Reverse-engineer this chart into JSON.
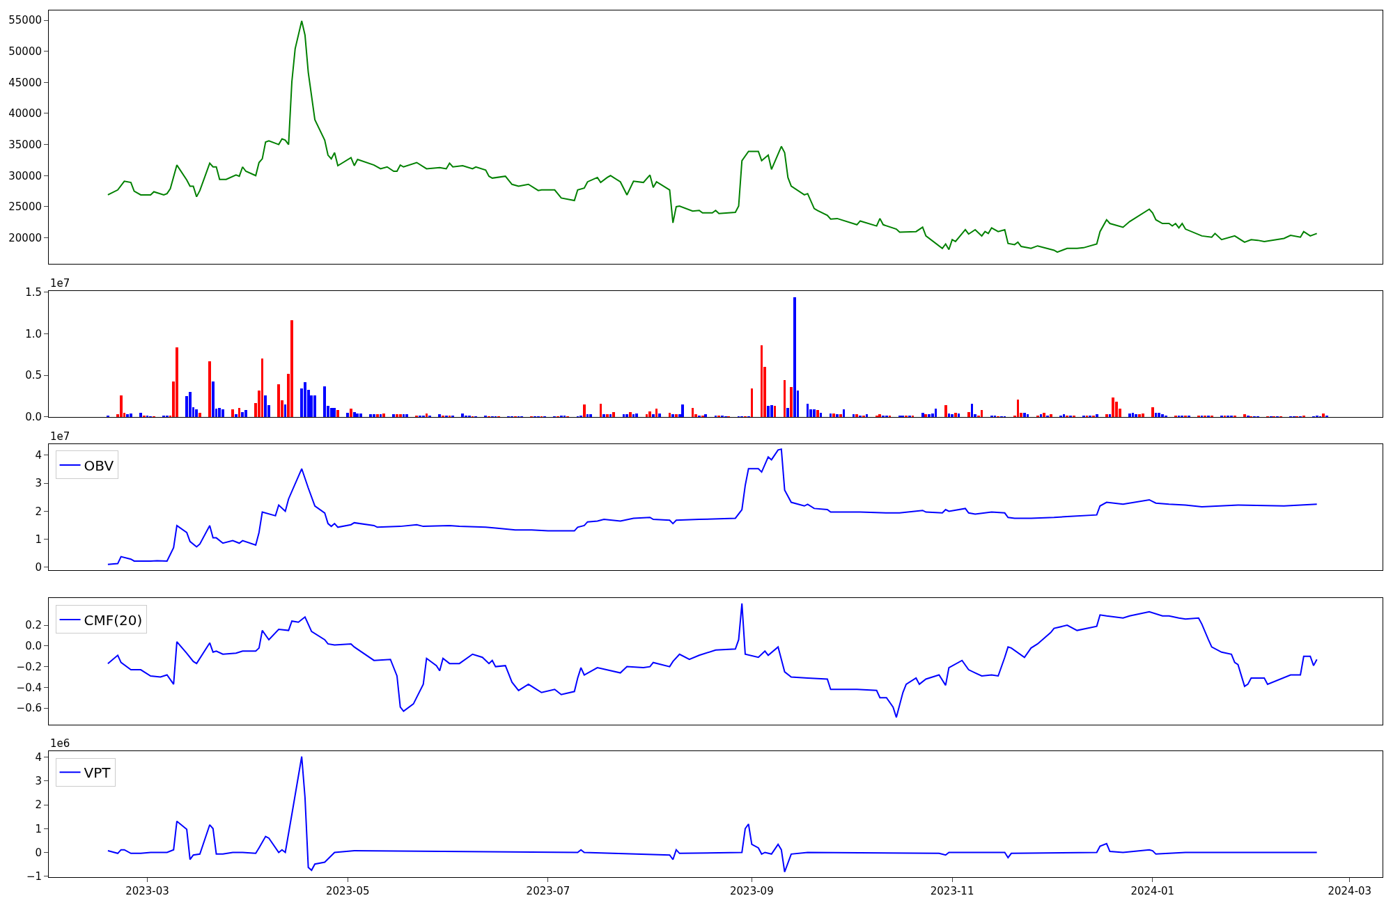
{
  "chart_data": [
    {
      "type": "line",
      "xlim": [
        "2023-01-30",
        "2024-03-11"
      ],
      "ylim": [
        15860,
        56570
      ],
      "yticks": [
        20000,
        25000,
        30000,
        35000,
        40000,
        45000,
        50000,
        55000
      ],
      "tick_labels": "y",
      "x": [
        "2023-02-17",
        "2023-02-20",
        "2023-02-22",
        "2023-02-24",
        "2023-02-25",
        "2023-02-27",
        "2023-03-02",
        "2023-03-03",
        "2023-03-06",
        "2023-03-07",
        "2023-03-08",
        "2023-03-10",
        "2023-03-13",
        "2023-03-14",
        "2023-03-15",
        "2023-03-16",
        "2023-03-17",
        "2023-03-20",
        "2023-03-21",
        "2023-03-22",
        "2023-03-23",
        "2023-03-25",
        "2023-03-28",
        "2023-03-29",
        "2023-03-30",
        "2023-03-31",
        "2023-04-03",
        "2023-04-04",
        "2023-04-05",
        "2023-04-06",
        "2023-04-07",
        "2023-04-10",
        "2023-04-11",
        "2023-04-12",
        "2023-04-13",
        "2023-04-14",
        "2023-04-15",
        "2023-04-17",
        "2023-04-18",
        "2023-04-19",
        "2023-04-21",
        "2023-04-24",
        "2023-04-25",
        "2023-04-26",
        "2023-04-27",
        "2023-04-28",
        "2023-05-02",
        "2023-05-03",
        "2023-05-04",
        "2023-05-09",
        "2023-05-11",
        "2023-05-13",
        "2023-05-15",
        "2023-05-16",
        "2023-05-17",
        "2023-05-18",
        "2023-05-22",
        "2023-05-25",
        "2023-05-29",
        "2023-05-31",
        "2023-06-01",
        "2023-06-02",
        "2023-06-05",
        "2023-06-08",
        "2023-06-09",
        "2023-06-12",
        "2023-06-13",
        "2023-06-14",
        "2023-06-18",
        "2023-06-20",
        "2023-06-22",
        "2023-06-25",
        "2023-06-28",
        "2023-06-29",
        "2023-07-03",
        "2023-07-05",
        "2023-07-09",
        "2023-07-10",
        "2023-07-12",
        "2023-07-13",
        "2023-07-16",
        "2023-07-17",
        "2023-07-19",
        "2023-07-20",
        "2023-07-23",
        "2023-07-25",
        "2023-07-27",
        "2023-07-30",
        "2023-08-01",
        "2023-08-02",
        "2023-08-03",
        "2023-08-07",
        "2023-08-08",
        "2023-08-09",
        "2023-08-10",
        "2023-08-14",
        "2023-08-16",
        "2023-08-17",
        "2023-08-20",
        "2023-08-21",
        "2023-08-22",
        "2023-08-27",
        "2023-08-28",
        "2023-08-29",
        "2023-08-31",
        "2023-09-03",
        "2023-09-04",
        "2023-09-06",
        "2023-09-07",
        "2023-09-10",
        "2023-09-11",
        "2023-09-12",
        "2023-09-13",
        "2023-09-17",
        "2023-09-18",
        "2023-09-20",
        "2023-09-21",
        "2023-09-24",
        "2023-09-25",
        "2023-09-27",
        "2023-10-03",
        "2023-10-04",
        "2023-10-09",
        "2023-10-10",
        "2023-10-11",
        "2023-10-15",
        "2023-10-16",
        "2023-10-21",
        "2023-10-23",
        "2023-10-24",
        "2023-10-29",
        "2023-10-30",
        "2023-10-31",
        "2023-11-01",
        "2023-11-02",
        "2023-11-05",
        "2023-11-06",
        "2023-11-08",
        "2023-11-10",
        "2023-11-11",
        "2023-11-12",
        "2023-11-13",
        "2023-11-15",
        "2023-11-17",
        "2023-11-18",
        "2023-11-20",
        "2023-11-21",
        "2023-11-22",
        "2023-11-25",
        "2023-11-27",
        "2023-12-02",
        "2023-12-03",
        "2023-12-06",
        "2023-12-09",
        "2023-12-11",
        "2023-12-15",
        "2023-12-16",
        "2023-12-18",
        "2023-12-19",
        "2023-12-23",
        "2023-12-25",
        "2023-12-31",
        "2024-01-01",
        "2024-01-02",
        "2024-01-04",
        "2024-01-06",
        "2024-01-07",
        "2024-01-08",
        "2024-01-09",
        "2024-01-10",
        "2024-01-11",
        "2024-01-16",
        "2024-01-19",
        "2024-01-20",
        "2024-01-22",
        "2024-01-26",
        "2024-01-29",
        "2024-01-31",
        "2024-02-02",
        "2024-02-04",
        "2024-02-10",
        "2024-02-12",
        "2024-02-15",
        "2024-02-16",
        "2024-02-18",
        "2024-02-20"
      ],
      "series": [
        {
          "color": "#008000",
          "values": [
            26900,
            27700,
            29100,
            28900,
            27500,
            26900,
            26900,
            27400,
            26900,
            27100,
            27900,
            31700,
            29300,
            28300,
            28300,
            26600,
            27600,
            32000,
            31400,
            31400,
            29400,
            29400,
            30100,
            29900,
            31400,
            30700,
            30000,
            32100,
            32700,
            35400,
            35600,
            35000,
            35900,
            35700,
            35000,
            45100,
            50400,
            54900,
            52600,
            46600,
            39000,
            35700,
            33300,
            32700,
            33700,
            31600,
            32900,
            31600,
            32600,
            31700,
            31100,
            31400,
            30700,
            30700,
            31700,
            31400,
            32100,
            31100,
            31300,
            31100,
            32000,
            31400,
            31600,
            31100,
            31400,
            30900,
            29900,
            29600,
            29900,
            28600,
            28300,
            28600,
            27600,
            27700,
            27700,
            26400,
            26000,
            27700,
            28000,
            29000,
            29700,
            28900,
            29700,
            30000,
            29000,
            26900,
            29100,
            28900,
            30100,
            28100,
            29000,
            27700,
            22400,
            25000,
            25100,
            24300,
            24400,
            24000,
            24000,
            24400,
            23900,
            24100,
            25100,
            32400,
            33900,
            33900,
            32400,
            33300,
            31000,
            34700,
            33700,
            29700,
            28300,
            26900,
            27100,
            24700,
            24400,
            23600,
            23000,
            23100,
            22100,
            22700,
            21900,
            23100,
            22100,
            21400,
            20900,
            21000,
            21700,
            20300,
            18300,
            19000,
            18100,
            19700,
            19400,
            21300,
            20600,
            21300,
            20300,
            21000,
            20700,
            21600,
            21000,
            21300,
            19100,
            18900,
            19300,
            18600,
            18300,
            18700,
            18000,
            17700,
            18300,
            18300,
            18400,
            19000,
            21000,
            22900,
            22300,
            21700,
            22600,
            24600,
            24000,
            22900,
            22300,
            22300,
            21900,
            22300,
            21600,
            22300,
            21400,
            20300,
            20100,
            20700,
            19700,
            20300,
            19300,
            19700,
            19600,
            19400,
            19900,
            20400,
            20100,
            21000,
            20300,
            20700
          ]
        }
      ]
    },
    {
      "type": "bar",
      "xlim": [
        "2023-01-30",
        "2024-03-11"
      ],
      "ylim": [
        0,
        1.512
      ],
      "yticks": [
        {
          "value": 0,
          "label": "0.0"
        },
        0.5,
        {
          "value": 1,
          "label": "1.0"
        },
        1.5
      ],
      "tick_labels": "y",
      "annotations": [
        "1e7"
      ],
      "x": [
        "2023-02-17",
        "2023-02-20",
        "2023-02-21",
        "2023-02-22",
        "2023-02-23",
        "2023-02-24",
        "2023-02-27",
        "2023-02-28",
        "2023-03-01",
        "2023-03-02",
        "2023-03-03",
        "2023-03-06",
        "2023-03-07",
        "2023-03-08",
        "2023-03-09",
        "2023-03-10",
        "2023-03-13",
        "2023-03-14",
        "2023-03-15",
        "2023-03-16",
        "2023-03-17",
        "2023-03-20",
        "2023-03-21",
        "2023-03-22",
        "2023-03-23",
        "2023-03-24",
        "2023-03-27",
        "2023-03-28",
        "2023-03-29",
        "2023-03-30",
        "2023-03-31",
        "2023-04-03",
        "2023-04-04",
        "2023-04-05",
        "2023-04-06",
        "2023-04-07",
        "2023-04-10",
        "2023-04-11",
        "2023-04-12",
        "2023-04-13",
        "2023-04-14",
        "2023-04-17",
        "2023-04-18",
        "2023-04-19",
        "2023-04-20",
        "2023-04-21",
        "2023-04-24",
        "2023-04-25",
        "2023-04-26",
        "2023-04-27",
        "2023-04-28",
        "2023-05-01",
        "2023-05-02",
        "2023-05-03",
        "2023-05-04",
        "2023-05-05",
        "2023-05-08",
        "2023-05-09",
        "2023-05-10",
        "2023-05-11",
        "2023-05-12",
        "2023-05-15",
        "2023-05-16",
        "2023-05-17",
        "2023-05-18",
        "2023-05-19",
        "2023-05-22",
        "2023-05-23",
        "2023-05-24",
        "2023-05-25",
        "2023-05-26",
        "2023-05-29",
        "2023-05-30",
        "2023-05-31",
        "2023-06-01",
        "2023-06-02",
        "2023-06-05",
        "2023-06-06",
        "2023-06-07",
        "2023-06-08",
        "2023-06-09",
        "2023-06-12",
        "2023-06-13",
        "2023-06-14",
        "2023-06-15",
        "2023-06-16",
        "2023-06-19",
        "2023-06-20",
        "2023-06-21",
        "2023-06-22",
        "2023-06-23",
        "2023-06-26",
        "2023-06-27",
        "2023-06-28",
        "2023-06-29",
        "2023-06-30",
        "2023-07-03",
        "2023-07-04",
        "2023-07-05",
        "2023-07-06",
        "2023-07-07",
        "2023-07-10",
        "2023-07-11",
        "2023-07-12",
        "2023-07-13",
        "2023-07-14",
        "2023-07-17",
        "2023-07-18",
        "2023-07-19",
        "2023-07-20",
        "2023-07-21",
        "2023-07-24",
        "2023-07-25",
        "2023-07-26",
        "2023-07-27",
        "2023-07-28",
        "2023-07-31",
        "2023-08-01",
        "2023-08-02",
        "2023-08-03",
        "2023-08-04",
        "2023-08-07",
        "2023-08-08",
        "2023-08-09",
        "2023-08-10",
        "2023-08-11",
        "2023-08-14",
        "2023-08-15",
        "2023-08-16",
        "2023-08-17",
        "2023-08-18",
        "2023-08-21",
        "2023-08-22",
        "2023-08-23",
        "2023-08-24",
        "2023-08-25",
        "2023-08-28",
        "2023-08-29",
        "2023-08-30",
        "2023-08-31",
        "2023-09-01",
        "2023-09-04",
        "2023-09-05",
        "2023-09-06",
        "2023-09-07",
        "2023-09-08",
        "2023-09-11",
        "2023-09-12",
        "2023-09-13",
        "2023-09-14",
        "2023-09-15",
        "2023-09-18",
        "2023-09-19",
        "2023-09-20",
        "2023-09-21",
        "2023-09-22",
        "2023-09-25",
        "2023-09-26",
        "2023-09-27",
        "2023-09-28",
        "2023-09-29",
        "2023-10-02",
        "2023-10-03",
        "2023-10-04",
        "2023-10-05",
        "2023-10-06",
        "2023-10-09",
        "2023-10-10",
        "2023-10-11",
        "2023-10-12",
        "2023-10-13",
        "2023-10-16",
        "2023-10-17",
        "2023-10-18",
        "2023-10-19",
        "2023-10-20",
        "2023-10-23",
        "2023-10-24",
        "2023-10-25",
        "2023-10-26",
        "2023-10-27",
        "2023-10-30",
        "2023-10-31",
        "2023-11-01",
        "2023-11-02",
        "2023-11-03",
        "2023-11-06",
        "2023-11-07",
        "2023-11-08",
        "2023-11-09",
        "2023-11-10",
        "2023-11-13",
        "2023-11-14",
        "2023-11-15",
        "2023-11-16",
        "2023-11-17",
        "2023-11-20",
        "2023-11-21",
        "2023-11-22",
        "2023-11-23",
        "2023-11-24",
        "2023-11-27",
        "2023-11-28",
        "2023-11-29",
        "2023-11-30",
        "2023-12-01",
        "2023-12-04",
        "2023-12-05",
        "2023-12-06",
        "2023-12-07",
        "2023-12-08",
        "2023-12-11",
        "2023-12-12",
        "2023-12-13",
        "2023-12-14",
        "2023-12-15",
        "2023-12-18",
        "2023-12-19",
        "2023-12-20",
        "2023-12-21",
        "2023-12-22",
        "2023-12-25",
        "2023-12-26",
        "2023-12-27",
        "2023-12-28",
        "2023-12-29",
        "2024-01-01",
        "2024-01-02",
        "2024-01-03",
        "2024-01-04",
        "2024-01-05",
        "2024-01-08",
        "2024-01-09",
        "2024-01-10",
        "2024-01-11",
        "2024-01-12",
        "2024-01-15",
        "2024-01-16",
        "2024-01-17",
        "2024-01-18",
        "2024-01-19",
        "2024-01-22",
        "2024-01-23",
        "2024-01-24",
        "2024-01-25",
        "2024-01-26",
        "2024-01-29",
        "2024-01-30",
        "2024-01-31",
        "2024-02-01",
        "2024-02-02",
        "2024-02-05",
        "2024-02-06",
        "2024-02-07",
        "2024-02-08",
        "2024-02-09",
        "2024-02-12",
        "2024-02-13",
        "2024-02-14",
        "2024-02-15",
        "2024-02-16",
        "2024-02-19",
        "2024-02-20",
        "2024-02-21",
        "2024-02-22",
        "2024-02-23"
      ],
      "values": [
        0.02,
        0.03,
        0.26,
        0.05,
        0.03,
        0.04,
        0.05,
        0.02,
        0.02,
        0.01,
        0.01,
        0.02,
        0.02,
        0.02,
        0.43,
        0.84,
        0.25,
        0.3,
        0.12,
        0.09,
        0.05,
        0.67,
        0.43,
        0.1,
        0.11,
        0.09,
        0.09,
        0.03,
        0.11,
        0.06,
        0.08,
        0.17,
        0.32,
        0.7,
        0.26,
        0.14,
        0.39,
        0.2,
        0.15,
        0.52,
        1.16,
        0.34,
        0.42,
        0.33,
        0.26,
        0.26,
        0.37,
        0.13,
        0.11,
        0.11,
        0.08,
        0.05,
        0.1,
        0.06,
        0.04,
        0.04,
        0.03,
        0.03,
        0.03,
        0.03,
        0.04,
        0.03,
        0.03,
        0.03,
        0.03,
        0.03,
        0.02,
        0.02,
        0.02,
        0.04,
        0.02,
        0.03,
        0.02,
        0.02,
        0.02,
        0.02,
        0.04,
        0.02,
        0.02,
        0.01,
        0.01,
        0.02,
        0.01,
        0.01,
        0.01,
        0.01,
        0.01,
        0.01,
        0.01,
        0.01,
        0.01,
        0.01,
        0.01,
        0.01,
        0.01,
        0.01,
        0.01,
        0.01,
        0.02,
        0.02,
        0.01,
        0.01,
        0.02,
        0.15,
        0.03,
        0.03,
        0.16,
        0.03,
        0.03,
        0.03,
        0.06,
        0.03,
        0.03,
        0.06,
        0.03,
        0.04,
        0.03,
        0.07,
        0.03,
        0.1,
        0.04,
        0.05,
        0.03,
        0.03,
        0.03,
        0.15,
        0.11,
        0.03,
        0.02,
        0.02,
        0.03,
        0.02,
        0.02,
        0.02,
        0.01,
        0.01,
        0.01,
        0.01,
        0.01,
        0.01,
        0.34,
        0.86,
        0.6,
        0.13,
        0.14,
        0.13,
        0.44,
        0.11,
        0.36,
        1.44,
        0.32,
        0.16,
        0.09,
        0.09,
        0.08,
        0.05,
        0.04,
        0.04,
        0.03,
        0.03,
        0.09,
        0.03,
        0.03,
        0.02,
        0.02,
        0.03,
        0.02,
        0.03,
        0.02,
        0.02,
        0.02,
        0.02,
        0.02,
        0.02,
        0.02,
        0.02,
        0.05,
        0.03,
        0.03,
        0.04,
        0.1,
        0.14,
        0.04,
        0.03,
        0.05,
        0.04,
        0.06,
        0.16,
        0.03,
        0.02,
        0.08,
        0.02,
        0.02,
        0.01,
        0.01,
        0.01,
        0.02,
        0.21,
        0.05,
        0.05,
        0.03,
        0.02,
        0.03,
        0.05,
        0.02,
        0.03,
        0.02,
        0.03,
        0.02,
        0.02,
        0.02,
        0.02,
        0.02,
        0.02,
        0.02,
        0.03,
        0.03,
        0.03,
        0.23,
        0.18,
        0.1,
        0.04,
        0.05,
        0.03,
        0.03,
        0.04,
        0.12,
        0.05,
        0.05,
        0.03,
        0.02,
        0.02,
        0.02,
        0.02,
        0.02,
        0.02,
        0.02,
        0.02,
        0.02,
        0.02,
        0.02,
        0.02,
        0.02,
        0.02,
        0.02,
        0.02,
        0.03,
        0.02,
        0.01,
        0.01,
        0.01,
        0.01,
        0.01,
        0.01,
        0.01,
        0.01,
        0.01,
        0.01,
        0.01,
        0.01,
        0.02,
        0.01,
        0.02,
        0.01,
        0.04,
        0.02
      ],
      "colors": [
        "#0000ff",
        "#ff0000",
        "#ff0000",
        "#ff0000",
        "#0000ff",
        "#0000ff",
        "#0000ff",
        "#ff0000",
        "#0000ff",
        "#0000ff",
        "#ff0000",
        "#0000ff",
        "#0000ff",
        "#ff0000",
        "#ff0000",
        "#ff0000",
        "#0000ff",
        "#0000ff",
        "#0000ff",
        "#0000ff",
        "#ff0000",
        "#ff0000",
        "#0000ff",
        "#0000ff",
        "#0000ff",
        "#0000ff",
        "#ff0000",
        "#0000ff",
        "#ff0000",
        "#0000ff",
        "#0000ff",
        "#ff0000",
        "#ff0000",
        "#ff0000",
        "#0000ff",
        "#0000ff",
        "#ff0000",
        "#ff0000",
        "#0000ff",
        "#ff0000",
        "#ff0000",
        "#0000ff",
        "#0000ff",
        "#0000ff",
        "#0000ff",
        "#0000ff",
        "#0000ff",
        "#0000ff",
        "#0000ff",
        "#0000ff",
        "#ff0000",
        "#0000ff",
        "#ff0000",
        "#0000ff",
        "#0000ff",
        "#0000ff",
        "#0000ff",
        "#0000ff",
        "#ff0000",
        "#0000ff",
        "#ff0000",
        "#0000ff",
        "#ff0000",
        "#ff0000",
        "#0000ff",
        "#0000ff",
        "#ff0000",
        "#0000ff",
        "#0000ff",
        "#ff0000",
        "#0000ff",
        "#0000ff",
        "#ff0000",
        "#0000ff",
        "#ff0000",
        "#0000ff",
        "#0000ff",
        "#0000ff",
        "#0000ff",
        "#ff0000",
        "#0000ff",
        "#0000ff",
        "#ff0000",
        "#0000ff",
        "#0000ff",
        "#ff0000",
        "#0000ff",
        "#0000ff",
        "#ff0000",
        "#0000ff",
        "#0000ff",
        "#ff0000",
        "#0000ff",
        "#0000ff",
        "#ff0000",
        "#0000ff",
        "#0000ff",
        "#ff0000",
        "#0000ff",
        "#0000ff",
        "#ff0000",
        "#0000ff",
        "#0000ff",
        "#ff0000",
        "#0000ff",
        "#0000ff",
        "#ff0000",
        "#0000ff",
        "#ff0000",
        "#0000ff",
        "#ff0000",
        "#0000ff",
        "#0000ff",
        "#ff0000",
        "#0000ff",
        "#0000ff",
        "#ff0000",
        "#ff0000",
        "#0000ff",
        "#ff0000",
        "#0000ff",
        "#ff0000",
        "#0000ff",
        "#ff0000",
        "#0000ff",
        "#0000ff",
        "#ff0000",
        "#ff0000",
        "#0000ff",
        "#ff0000",
        "#0000ff",
        "#0000ff",
        "#ff0000",
        "#0000ff",
        "#0000ff",
        "#ff0000",
        "#0000ff",
        "#0000ff",
        "#ff0000",
        "#0000ff",
        "#ff0000",
        "#ff0000",
        "#ff0000",
        "#0000ff",
        "#0000ff",
        "#ff0000",
        "#ff0000",
        "#0000ff",
        "#ff0000",
        "#0000ff",
        "#0000ff",
        "#0000ff",
        "#0000ff",
        "#0000ff",
        "#ff0000",
        "#0000ff",
        "#0000ff",
        "#ff0000",
        "#0000ff",
        "#ff0000",
        "#0000ff",
        "#0000ff",
        "#ff0000",
        "#0000ff",
        "#ff0000",
        "#0000ff",
        "#ff0000",
        "#ff0000",
        "#0000ff",
        "#0000ff",
        "#ff0000",
        "#0000ff",
        "#0000ff",
        "#ff0000",
        "#0000ff",
        "#ff0000",
        "#0000ff",
        "#ff0000",
        "#0000ff",
        "#0000ff",
        "#0000ff",
        "#ff0000",
        "#0000ff",
        "#0000ff",
        "#ff0000",
        "#0000ff",
        "#ff0000",
        "#0000ff",
        "#0000ff",
        "#ff0000",
        "#ff0000",
        "#0000ff",
        "#0000ff",
        "#ff0000",
        "#0000ff",
        "#0000ff",
        "#ff0000",
        "#ff0000",
        "#ff0000",
        "#0000ff",
        "#0000ff",
        "#ff0000",
        "#0000ff",
        "#ff0000",
        "#0000ff",
        "#ff0000",
        "#0000ff",
        "#0000ff",
        "#ff0000",
        "#0000ff",
        "#ff0000",
        "#0000ff",
        "#ff0000",
        "#0000ff",
        "#ff0000",
        "#0000ff",
        "#ff0000",
        "#0000ff",
        "#ff0000",
        "#ff0000",
        "#ff0000",
        "#0000ff",
        "#0000ff",
        "#0000ff",
        "#ff0000",
        "#ff0000",
        "#ff0000",
        "#0000ff",
        "#0000ff",
        "#0000ff",
        "#0000ff",
        "#ff0000",
        "#0000ff",
        "#0000ff",
        "#ff0000",
        "#0000ff",
        "#ff0000",
        "#0000ff",
        "#ff0000",
        "#0000ff",
        "#ff0000",
        "#0000ff",
        "#ff0000",
        "#0000ff",
        "#0000ff",
        "#ff0000",
        "#ff0000",
        "#0000ff",
        "#ff0000",
        "#0000ff",
        "#0000ff",
        "#ff0000",
        "#0000ff",
        "#ff0000",
        "#0000ff",
        "#ff0000",
        "#0000ff",
        "#0000ff",
        "#ff0000",
        "#0000ff",
        "#ff0000",
        "#0000ff",
        "#0000ff",
        "#0000ff",
        "#ff0000",
        "#0000ff"
      ]
    },
    {
      "type": "line",
      "xlim": [
        "2023-01-30",
        "2024-03-11"
      ],
      "ylim": [
        -0.095,
        4.41
      ],
      "yticks": [
        0,
        1,
        2,
        3,
        4
      ],
      "tick_labels": "y",
      "annotations": [
        "1e7"
      ],
      "legend": "top left",
      "x": [
        "2023-02-17",
        "2023-02-20",
        "2023-02-21",
        "2023-02-24",
        "2023-02-25",
        "2023-03-02",
        "2023-03-04",
        "2023-03-07",
        "2023-03-09",
        "2023-03-10",
        "2023-03-13",
        "2023-03-14",
        "2023-03-16",
        "2023-03-17",
        "2023-03-20",
        "2023-03-21",
        "2023-03-22",
        "2023-03-24",
        "2023-03-27",
        "2023-03-29",
        "2023-03-30",
        "2023-04-03",
        "2023-04-04",
        "2023-04-05",
        "2023-04-09",
        "2023-04-10",
        "2023-04-12",
        "2023-04-13",
        "2023-04-17",
        "2023-04-19",
        "2023-04-21",
        "2023-04-24",
        "2023-04-25",
        "2023-04-26",
        "2023-04-27",
        "2023-04-28",
        "2023-05-02",
        "2023-05-03",
        "2023-05-09",
        "2023-05-10",
        "2023-05-17",
        "2023-05-22",
        "2023-05-24",
        "2023-06-01",
        "2023-06-04",
        "2023-06-12",
        "2023-06-15",
        "2023-06-21",
        "2023-06-26",
        "2023-07-01",
        "2023-07-05",
        "2023-07-09",
        "2023-07-10",
        "2023-07-12",
        "2023-07-13",
        "2023-07-16",
        "2023-07-18",
        "2023-07-23",
        "2023-07-27",
        "2023-08-01",
        "2023-08-02",
        "2023-08-07",
        "2023-08-08",
        "2023-08-09",
        "2023-08-16",
        "2023-08-27",
        "2023-08-29",
        "2023-08-30",
        "2023-08-31",
        "2023-09-03",
        "2023-09-04",
        "2023-09-06",
        "2023-09-07",
        "2023-09-09",
        "2023-09-10",
        "2023-09-11",
        "2023-09-13",
        "2023-09-17",
        "2023-09-18",
        "2023-09-20",
        "2023-09-24",
        "2023-09-25",
        "2023-10-04",
        "2023-10-12",
        "2023-10-16",
        "2023-10-23",
        "2023-10-24",
        "2023-10-29",
        "2023-10-30",
        "2023-10-31",
        "2023-11-05",
        "2023-11-06",
        "2023-11-08",
        "2023-11-13",
        "2023-11-17",
        "2023-11-18",
        "2023-11-20",
        "2023-11-25",
        "2023-12-02",
        "2023-12-06",
        "2023-12-15",
        "2023-12-16",
        "2023-12-18",
        "2023-12-23",
        "2023-12-31",
        "2024-01-01",
        "2024-01-02",
        "2024-01-06",
        "2024-01-11",
        "2024-01-16",
        "2024-01-27",
        "2024-02-10",
        "2024-02-20"
      ],
      "series": [
        {
          "name": "OBV",
          "color": "#0000ff",
          "values": [
            0.1,
            0.13,
            0.38,
            0.29,
            0.22,
            0.22,
            0.23,
            0.22,
            0.7,
            1.49,
            1.24,
            0.92,
            0.73,
            0.83,
            1.49,
            1.05,
            1.05,
            0.86,
            0.95,
            0.86,
            0.95,
            0.79,
            1.24,
            1.97,
            1.84,
            2.22,
            2.0,
            2.44,
            3.52,
            2.83,
            2.19,
            1.94,
            1.56,
            1.46,
            1.56,
            1.43,
            1.52,
            1.59,
            1.49,
            1.43,
            1.46,
            1.52,
            1.46,
            1.49,
            1.46,
            1.43,
            1.4,
            1.33,
            1.33,
            1.3,
            1.3,
            1.3,
            1.43,
            1.49,
            1.62,
            1.65,
            1.71,
            1.65,
            1.75,
            1.78,
            1.71,
            1.68,
            1.56,
            1.68,
            1.71,
            1.75,
            2.06,
            2.92,
            3.52,
            3.52,
            3.4,
            3.94,
            3.84,
            4.19,
            4.22,
            2.76,
            2.32,
            2.19,
            2.25,
            2.1,
            2.06,
            1.97,
            1.97,
            1.94,
            1.94,
            2.03,
            1.97,
            1.94,
            2.06,
            2.0,
            2.1,
            1.94,
            1.9,
            1.97,
            1.94,
            1.78,
            1.75,
            1.75,
            1.78,
            1.81,
            1.87,
            2.19,
            2.32,
            2.25,
            2.41,
            2.35,
            2.29,
            2.25,
            2.22,
            2.16,
            2.22,
            2.19,
            2.25
          ]
        }
      ]
    },
    {
      "type": "line",
      "xlim": [
        "2023-01-30",
        "2024-03-11"
      ],
      "ylim": [
        -0.76,
        0.46
      ],
      "yticks": [
        {
          "value": -0.6,
          "label": "−0.6"
        },
        {
          "value": -0.4,
          "label": "−0.4"
        },
        {
          "value": -0.2,
          "label": "−0.2"
        },
        {
          "value": 0,
          "label": "0.0"
        },
        0.2
      ],
      "tick_labels": "y",
      "legend": "top left",
      "x": [
        "2023-02-17",
        "2023-02-20",
        "2023-02-21",
        "2023-02-24",
        "2023-02-27",
        "2023-03-02",
        "2023-03-05",
        "2023-03-07",
        "2023-03-09",
        "2023-03-10",
        "2023-03-13",
        "2023-03-15",
        "2023-03-16",
        "2023-03-20",
        "2023-03-21",
        "2023-03-22",
        "2023-03-24",
        "2023-03-28",
        "2023-03-30",
        "2023-04-03",
        "2023-04-04",
        "2023-04-05",
        "2023-04-07",
        "2023-04-10",
        "2023-04-13",
        "2023-04-14",
        "2023-04-16",
        "2023-04-18",
        "2023-04-20",
        "2023-04-24",
        "2023-04-25",
        "2023-04-27",
        "2023-05-02",
        "2023-05-03",
        "2023-05-09",
        "2023-05-14",
        "2023-05-16",
        "2023-05-17",
        "2023-05-18",
        "2023-05-21",
        "2023-05-24",
        "2023-05-25",
        "2023-05-28",
        "2023-05-29",
        "2023-05-30",
        "2023-06-01",
        "2023-06-04",
        "2023-06-08",
        "2023-06-11",
        "2023-06-13",
        "2023-06-14",
        "2023-06-15",
        "2023-06-18",
        "2023-06-20",
        "2023-06-22",
        "2023-06-25",
        "2023-06-27",
        "2023-06-29",
        "2023-07-03",
        "2023-07-05",
        "2023-07-09",
        "2023-07-10",
        "2023-07-11",
        "2023-07-12",
        "2023-07-16",
        "2023-07-23",
        "2023-07-25",
        "2023-07-30",
        "2023-08-01",
        "2023-08-02",
        "2023-08-07",
        "2023-08-08",
        "2023-08-10",
        "2023-08-13",
        "2023-08-16",
        "2023-08-21",
        "2023-08-27",
        "2023-08-28",
        "2023-08-29",
        "2023-08-30",
        "2023-09-03",
        "2023-09-05",
        "2023-09-06",
        "2023-09-09",
        "2023-09-11",
        "2023-09-13",
        "2023-09-18",
        "2023-09-24",
        "2023-09-25",
        "2023-10-03",
        "2023-10-09",
        "2023-10-10",
        "2023-10-12",
        "2023-10-14",
        "2023-10-15",
        "2023-10-17",
        "2023-10-18",
        "2023-10-21",
        "2023-10-22",
        "2023-10-24",
        "2023-10-28",
        "2023-10-30",
        "2023-10-31",
        "2023-11-04",
        "2023-11-06",
        "2023-11-08",
        "2023-11-10",
        "2023-11-13",
        "2023-11-15",
        "2023-11-17",
        "2023-11-18",
        "2023-11-19",
        "2023-11-23",
        "2023-11-25",
        "2023-11-27",
        "2023-12-01",
        "2023-12-02",
        "2023-12-06",
        "2023-12-09",
        "2023-12-15",
        "2023-12-16",
        "2023-12-18",
        "2023-12-23",
        "2023-12-25",
        "2023-12-31",
        "2024-01-04",
        "2024-01-06",
        "2024-01-09",
        "2024-01-11",
        "2024-01-15",
        "2024-01-16",
        "2024-01-18",
        "2024-01-19",
        "2024-01-22",
        "2024-01-25",
        "2024-01-26",
        "2024-01-27",
        "2024-01-29",
        "2024-01-30",
        "2024-01-31",
        "2024-02-04",
        "2024-02-05",
        "2024-02-12",
        "2024-02-15",
        "2024-02-16",
        "2024-02-18",
        "2024-02-19",
        "2024-02-20"
      ],
      "series": [
        {
          "name": "CMF(20)",
          "color": "#0000ff",
          "values": [
            -0.17,
            -0.09,
            -0.16,
            -0.23,
            -0.23,
            -0.29,
            -0.3,
            -0.28,
            -0.37,
            0.04,
            -0.07,
            -0.15,
            -0.17,
            0.03,
            -0.06,
            -0.05,
            -0.08,
            -0.07,
            -0.05,
            -0.05,
            -0.02,
            0.15,
            0.06,
            0.16,
            0.15,
            0.24,
            0.23,
            0.28,
            0.14,
            0.06,
            0.02,
            0.01,
            0.02,
            -0.01,
            -0.14,
            -0.13,
            -0.29,
            -0.59,
            -0.63,
            -0.56,
            -0.37,
            -0.12,
            -0.19,
            -0.24,
            -0.12,
            -0.17,
            -0.17,
            -0.08,
            -0.11,
            -0.17,
            -0.14,
            -0.2,
            -0.19,
            -0.35,
            -0.43,
            -0.37,
            -0.41,
            -0.45,
            -0.42,
            -0.47,
            -0.44,
            -0.31,
            -0.21,
            -0.28,
            -0.21,
            -0.26,
            -0.2,
            -0.21,
            -0.2,
            -0.16,
            -0.2,
            -0.15,
            -0.08,
            -0.13,
            -0.09,
            -0.04,
            -0.03,
            0.06,
            0.41,
            -0.08,
            -0.11,
            -0.05,
            -0.09,
            -0.01,
            -0.25,
            -0.3,
            -0.31,
            -0.32,
            -0.42,
            -0.42,
            -0.43,
            -0.5,
            -0.5,
            -0.59,
            -0.69,
            -0.45,
            -0.37,
            -0.31,
            -0.37,
            -0.32,
            -0.28,
            -0.38,
            -0.21,
            -0.14,
            -0.23,
            -0.26,
            -0.29,
            -0.28,
            -0.29,
            -0.11,
            -0.01,
            -0.02,
            -0.11,
            -0.02,
            0.02,
            0.13,
            0.17,
            0.2,
            0.15,
            0.19,
            0.3,
            0.29,
            0.27,
            0.29,
            0.33,
            0.29,
            0.29,
            0.27,
            0.26,
            0.27,
            0.21,
            0.06,
            -0.01,
            -0.06,
            -0.08,
            -0.16,
            -0.18,
            -0.39,
            -0.37,
            -0.31,
            -0.31,
            -0.37,
            -0.28,
            -0.28,
            -0.1,
            -0.1,
            -0.19,
            -0.13
          ]
        }
      ]
    },
    {
      "type": "line",
      "xlim": [
        "2023-01-30",
        "2024-03-11"
      ],
      "ylim": [
        -1.04,
        4.26
      ],
      "xticks": [
        {
          "value": "2023-03-01",
          "label": "2023-03"
        },
        {
          "value": "2023-05-01",
          "label": "2023-05"
        },
        {
          "value": "2023-07-01",
          "label": "2023-07"
        },
        {
          "value": "2023-09-01",
          "label": "2023-09"
        },
        {
          "value": "2023-11-01",
          "label": "2023-11"
        },
        {
          "value": "2024-01-01",
          "label": "2024-01"
        },
        {
          "value": "2024-03-01",
          "label": "2024-03"
        }
      ],
      "yticks": [
        {
          "value": -1,
          "label": "−1"
        },
        0,
        1,
        2,
        3,
        4
      ],
      "annotations": [
        "1e6"
      ],
      "legend": "top left",
      "x": [
        "2023-02-17",
        "2023-02-20",
        "2023-02-21",
        "2023-02-22",
        "2023-02-24",
        "2023-02-27",
        "2023-03-02",
        "2023-03-07",
        "2023-03-09",
        "2023-03-10",
        "2023-03-13",
        "2023-03-14",
        "2023-03-15",
        "2023-03-17",
        "2023-03-20",
        "2023-03-21",
        "2023-03-22",
        "2023-03-24",
        "2023-03-27",
        "2023-03-30",
        "2023-04-03",
        "2023-04-04",
        "2023-04-06",
        "2023-04-07",
        "2023-04-10",
        "2023-04-11",
        "2023-04-12",
        "2023-04-14",
        "2023-04-17",
        "2023-04-18",
        "2023-04-19",
        "2023-04-20",
        "2023-04-21",
        "2023-04-24",
        "2023-04-27",
        "2023-05-03",
        "2023-07-10",
        "2023-07-11",
        "2023-07-12",
        "2023-08-07",
        "2023-08-08",
        "2023-08-09",
        "2023-08-10",
        "2023-08-29",
        "2023-08-30",
        "2023-08-31",
        "2023-09-01",
        "2023-09-03",
        "2023-09-04",
        "2023-09-05",
        "2023-09-07",
        "2023-09-09",
        "2023-09-10",
        "2023-09-11",
        "2023-09-13",
        "2023-09-18",
        "2023-10-28",
        "2023-10-30",
        "2023-10-31",
        "2023-11-17",
        "2023-11-18",
        "2023-11-19",
        "2023-12-15",
        "2023-12-16",
        "2023-12-18",
        "2023-12-19",
        "2023-12-23",
        "2023-12-31",
        "2024-01-01",
        "2024-01-02",
        "2024-01-11",
        "2024-02-20"
      ],
      "series": [
        {
          "name": "VPT",
          "color": "#0000ff",
          "values": [
            0.07,
            -0.04,
            0.11,
            0.11,
            -0.04,
            -0.04,
            0,
            0,
            0.11,
            1.31,
            0.97,
            -0.3,
            -0.11,
            -0.07,
            1.16,
            1.0,
            -0.07,
            -0.07,
            0,
            0,
            -0.04,
            0.19,
            0.67,
            0.6,
            0,
            0.11,
            0,
            1.6,
            4.03,
            2.31,
            -0.63,
            -0.75,
            -0.49,
            -0.41,
            0,
            0.07,
            0,
            0.11,
            0,
            -0.11,
            -0.3,
            0.11,
            -0.04,
            0,
            1.0,
            1.19,
            0.34,
            0.19,
            -0.07,
            0,
            -0.07,
            0.34,
            0.11,
            -0.82,
            -0.07,
            0,
            -0.04,
            -0.11,
            0,
            0,
            -0.22,
            -0.04,
            0,
            0.26,
            0.37,
            0.04,
            0,
            0.11,
            0.07,
            -0.07,
            0,
            0
          ]
        }
      ]
    }
  ]
}
